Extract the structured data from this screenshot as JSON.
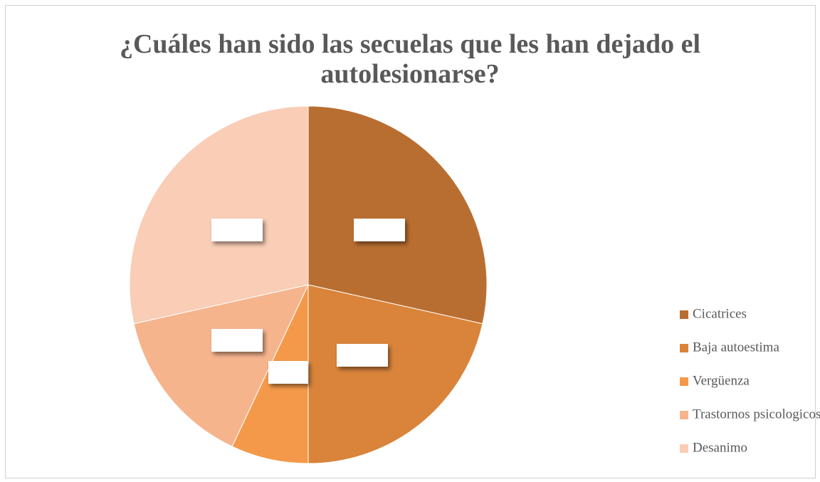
{
  "chart_data": {
    "type": "pie",
    "title": "¿Cuáles han sido las secuelas que les han dejado el autolesionarse?",
    "categories": [
      "Cicatrices",
      "Baja autoestima",
      "Vergüenza",
      "Trastornos psicologicos",
      "Desanimo"
    ],
    "values": [
      28.5,
      21.5,
      7,
      14.5,
      28.5
    ],
    "colors": [
      "#b96e31",
      "#d9843a",
      "#f4994a",
      "#f6b48d",
      "#f9cdb6"
    ],
    "legend": "right"
  }
}
